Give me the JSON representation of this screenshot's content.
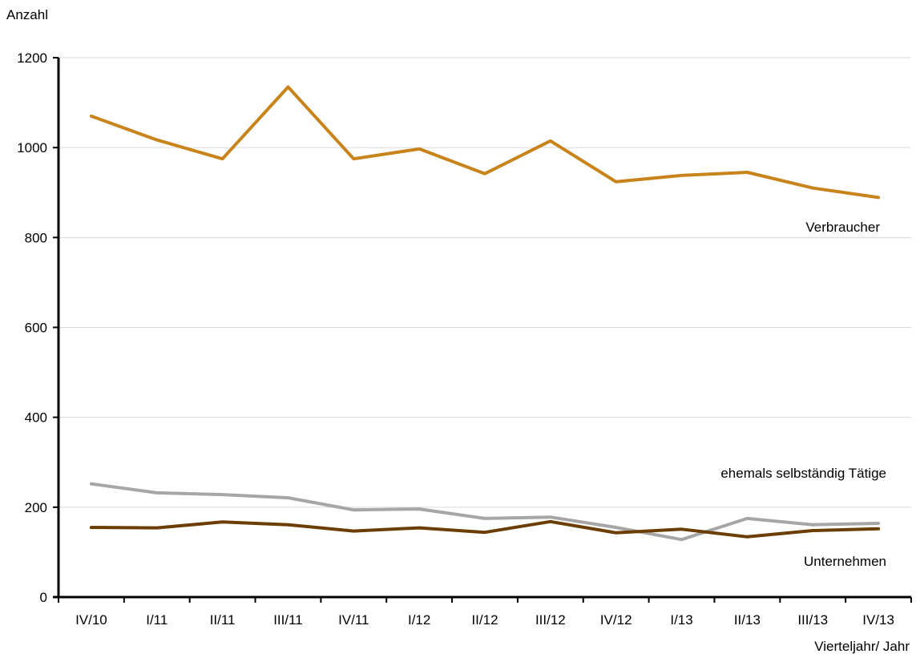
{
  "chart_data": {
    "type": "line",
    "title": "",
    "ylabel": "Anzahl",
    "xlabel": "Vierteljahr/ Jahr",
    "categories": [
      "IV/10",
      "I/11",
      "II/11",
      "III/11",
      "IV/11",
      "I/12",
      "II/12",
      "III/12",
      "IV/12",
      "I/13",
      "II/13",
      "III/13",
      "IV/13"
    ],
    "ylim": [
      0,
      1200
    ],
    "yticks": [
      0,
      200,
      400,
      600,
      800,
      1000,
      1200
    ],
    "grid": true,
    "legend": "inline labels",
    "series": [
      {
        "name": "Verbraucher",
        "color": "#c8831a",
        "values": [
          1070,
          1017,
          975,
          1135,
          975,
          997,
          942,
          1015,
          924,
          938,
          945,
          910,
          889
        ]
      },
      {
        "name": "ehemals selbständig Tätige",
        "color": "#a6a6a6",
        "values": [
          252,
          232,
          228,
          221,
          194,
          196,
          175,
          178,
          155,
          128,
          175,
          161,
          164
        ]
      },
      {
        "name": "Unternehmen",
        "color": "#6b3d00",
        "values": [
          155,
          154,
          167,
          161,
          147,
          154,
          144,
          168,
          143,
          151,
          134,
          148,
          152
        ]
      }
    ]
  }
}
